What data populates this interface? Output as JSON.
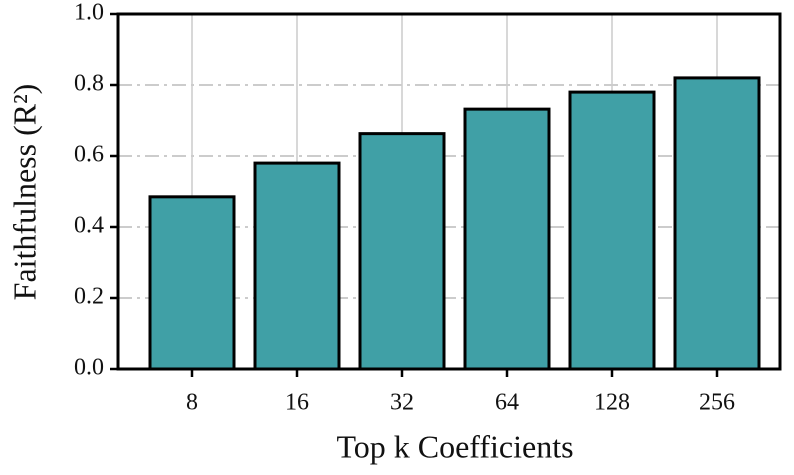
{
  "chart_data": {
    "type": "bar",
    "categories": [
      "8",
      "16",
      "32",
      "64",
      "128",
      "256"
    ],
    "values": [
      0.485,
      0.58,
      0.663,
      0.732,
      0.78,
      0.82
    ],
    "color": "#40a0a6",
    "xlabel": "Top k Coefficients",
    "ylabel": "Faithfulness (R²)",
    "ylim": [
      0,
      1
    ],
    "yticks": [
      {
        "value": 0,
        "label": "0.0"
      },
      0.2,
      0.4,
      0.6,
      0.8,
      {
        "value": 1,
        "label": "1.0"
      }
    ],
    "grid": true
  }
}
